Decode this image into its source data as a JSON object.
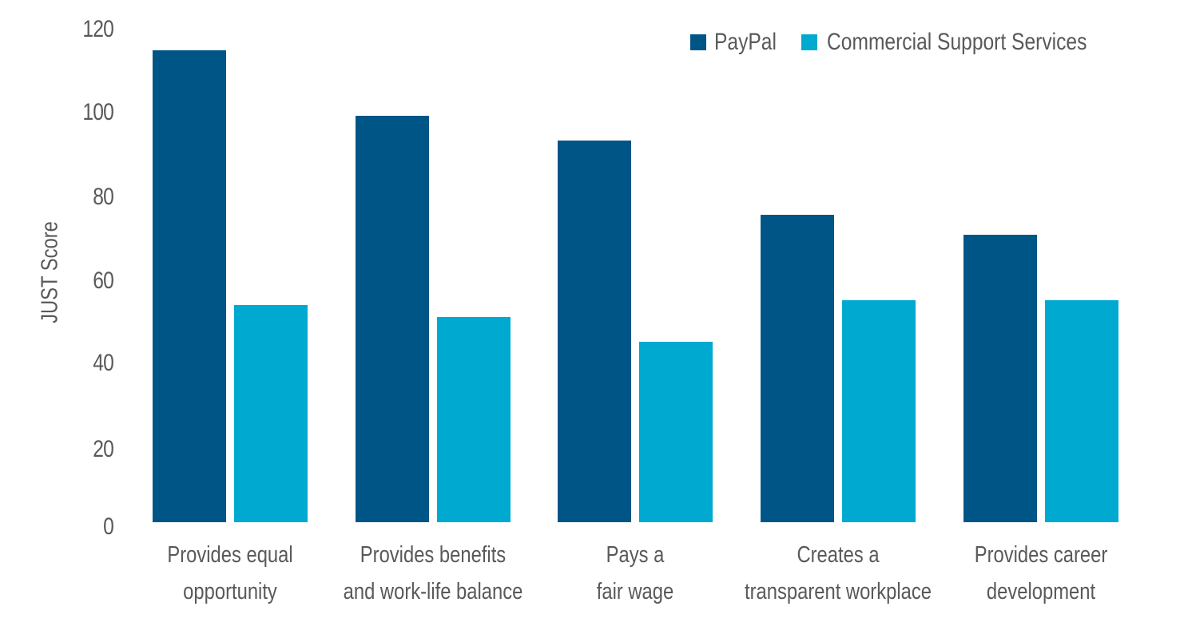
{
  "chart_data": {
    "type": "bar",
    "title": "",
    "xlabel": "",
    "ylabel": "JUST Score",
    "ylim": [
      0,
      120
    ],
    "yticks": [
      0,
      20,
      40,
      60,
      80,
      100,
      120
    ],
    "grid": false,
    "legend_position": "top-right",
    "categories": [
      [
        "Provides equal",
        "opportunity"
      ],
      [
        "Provides benefits",
        "and work-life balance"
      ],
      [
        "Pays a",
        "fair wage"
      ],
      [
        "Creates a",
        "transparent workplace"
      ],
      [
        "Provides career",
        "development"
      ]
    ],
    "series": [
      {
        "name": "PayPal",
        "color": "#005587",
        "values": [
          115,
          99,
          93,
          75,
          70
        ]
      },
      {
        "name": "Commercial Support Services",
        "color": "#00a9d0",
        "values": [
          53,
          50,
          44,
          54,
          54
        ]
      }
    ]
  },
  "legend": {
    "items": [
      {
        "label": "PayPal",
        "color": "#005587"
      },
      {
        "label": "Commercial Support Services",
        "color": "#00a9d0"
      }
    ]
  },
  "axis": {
    "y_label": "JUST Score",
    "y_ticks": [
      "0",
      "20",
      "40",
      "60",
      "80",
      "100",
      "120"
    ]
  },
  "x_labels": [
    {
      "line1": "Provides equal",
      "line2": "opportunity"
    },
    {
      "line1": "Provides benefits",
      "line2": "and work-life balance"
    },
    {
      "line1": "Pays a",
      "line2": "fair wage"
    },
    {
      "line1": "Creates a",
      "line2": "transparent workplace"
    },
    {
      "line1": "Provides career",
      "line2": "development"
    }
  ]
}
